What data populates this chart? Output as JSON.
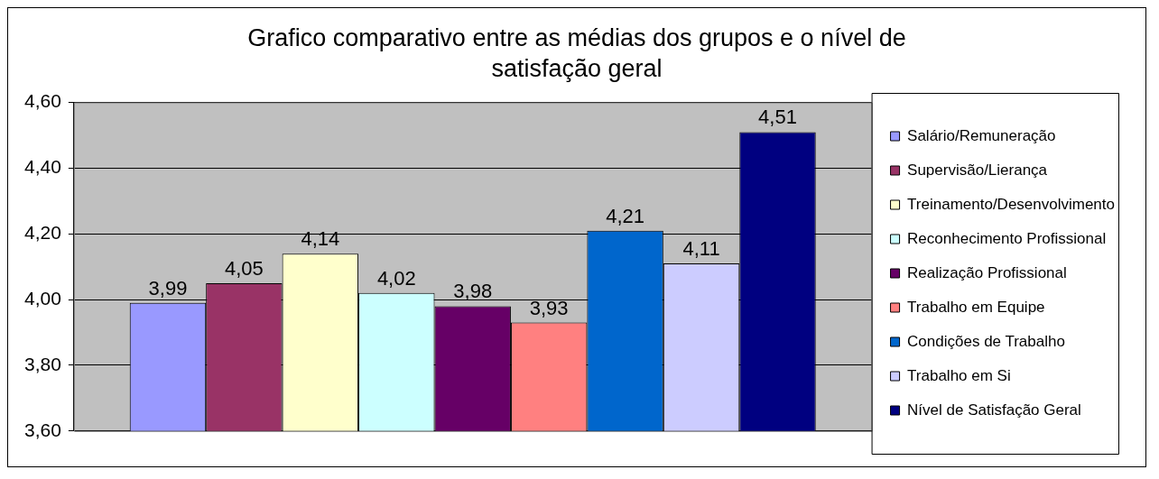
{
  "chart_data": {
    "type": "bar",
    "title": "Grafico comparativo entre as médias dos grupos e o nível de satisfação geral",
    "categories": [
      null
    ],
    "series": [
      {
        "name": "Salário/Remuneração",
        "color": "#9999ff",
        "values": [
          3.99
        ],
        "value_labels": [
          "3,99"
        ]
      },
      {
        "name": "Supervisão/Lierança",
        "color": "#993366",
        "values": [
          4.05
        ],
        "value_labels": [
          "4,05"
        ]
      },
      {
        "name": "Treinamento/Desenvolvimento",
        "color": "#ffffcc",
        "values": [
          4.14
        ],
        "value_labels": [
          "4,14"
        ]
      },
      {
        "name": "Reconhecimento Profissional",
        "color": "#ccffff",
        "values": [
          4.02
        ],
        "value_labels": [
          "4,02"
        ]
      },
      {
        "name": "Realização Profissional",
        "color": "#660066",
        "values": [
          3.98
        ],
        "value_labels": [
          "3,98"
        ]
      },
      {
        "name": "Trabalho em Equipe",
        "color": "#ff8080",
        "values": [
          3.93
        ],
        "value_labels": [
          "3,93"
        ]
      },
      {
        "name": "Condições de Trabalho",
        "color": "#0066cc",
        "values": [
          4.21
        ],
        "value_labels": [
          "4,21"
        ]
      },
      {
        "name": "Trabalho em Si",
        "color": "#ccccff",
        "values": [
          4.11
        ],
        "value_labels": [
          "4,11"
        ]
      },
      {
        "name": "Nível de Satisfação Geral",
        "color": "#000080",
        "values": [
          4.51
        ],
        "value_labels": [
          "4,51"
        ]
      }
    ],
    "ylim": [
      3.6,
      4.6
    ],
    "yticks": [
      {
        "value": 3.6,
        "label": "3,60"
      },
      {
        "value": 3.8,
        "label": "3,80"
      },
      {
        "value": 4.0,
        "label": "4,00"
      },
      {
        "value": 4.2,
        "label": "4,20"
      },
      {
        "value": 4.4,
        "label": "4,40"
      },
      {
        "value": 4.6,
        "label": "4,60"
      }
    ],
    "grid": "y",
    "legend": "right"
  }
}
